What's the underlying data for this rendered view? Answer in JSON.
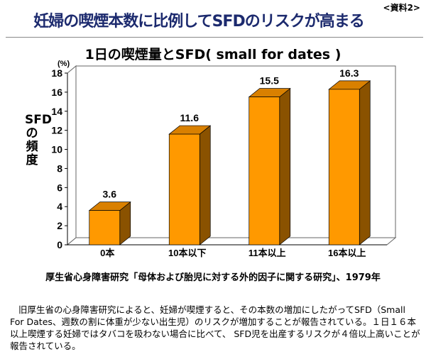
{
  "header": {
    "title": "妊婦の喫煙本数に比例してSFDのリスクが高まる",
    "doc_label": "<資料2>"
  },
  "chart_data": {
    "type": "bar",
    "title": "1日の喫煙量とSFD( small for dates )",
    "ylabel": "SFDの頻度",
    "yunit": "(%)",
    "xlabel": "",
    "categories": [
      "0本",
      "10本以下",
      "11本以上",
      "16本以上"
    ],
    "values": [
      3.6,
      11.6,
      15.5,
      16.3
    ],
    "data_labels": [
      "3.6",
      "11.6",
      "15.5",
      "16.3"
    ],
    "ylim": [
      0,
      18
    ],
    "yticks": [
      "0",
      "2",
      "4",
      "6",
      "8",
      "10",
      "12",
      "14",
      "16",
      "18"
    ],
    "grid": false,
    "colors": {
      "front": "#ff9900",
      "top": "#d98000",
      "side": "#8a5200"
    }
  },
  "source": "厚生省心身障害研究「母体および胎児に対する外的因子に関する研究」、1979年",
  "body_text": "旧厚生省の心身障害研究によると、妊婦が喫煙すると、その本数の増加にしたがってSFD（Small For Dates、週数の割に体重が少ない出生児）のリスクが増加することが報告されている。１日１６本以上喫煙する妊婦ではタバコを吸わない場合に比べて、 SFD児を出産するリスクが４倍以上高いことが報告されている。"
}
